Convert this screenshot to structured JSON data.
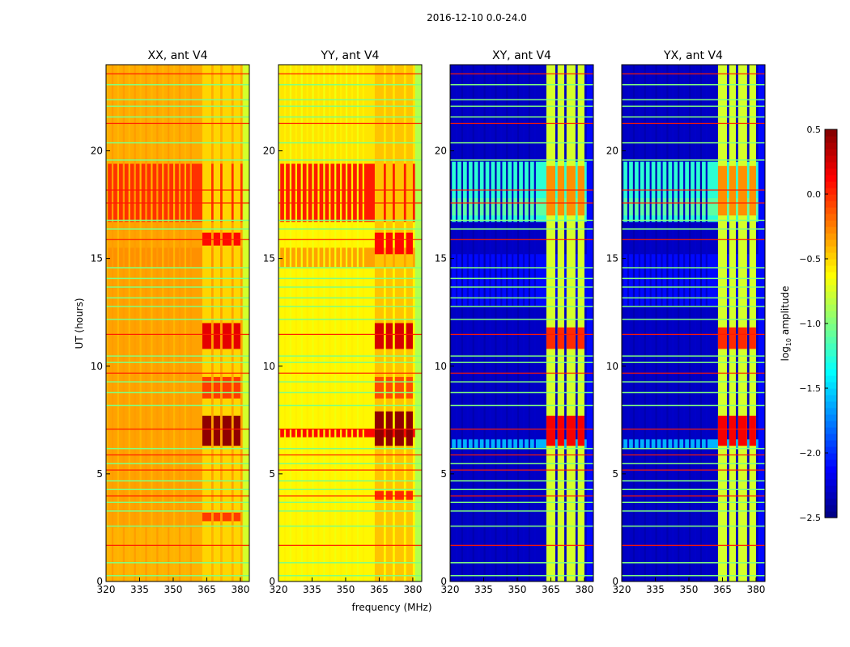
{
  "chart_data": {
    "type": "heatmap",
    "title": "2016-12-10 0.0-24.0",
    "xlabel": "frequency (MHz)",
    "ylabel": "UT (hours)",
    "xlim": [
      320,
      384
    ],
    "ylim": [
      0,
      24
    ],
    "xticks": [
      320,
      335,
      350,
      365,
      380
    ],
    "yticks": [
      0,
      5,
      10,
      15,
      20
    ],
    "colorbar": {
      "label": "log10 amplitude",
      "label_main": "log",
      "label_sub": "10",
      "label_rest": " amplitude",
      "colormap": "jet",
      "vmin": -2.5,
      "vmax": 0.5,
      "ticks": [
        "0.5",
        "0.0",
        "−0.5",
        "−1.0",
        "−1.5",
        "−2.0",
        "−2.5"
      ],
      "tick_values": [
        0.5,
        0.0,
        -0.5,
        -1.0,
        -1.5,
        -2.0,
        -2.5
      ]
    },
    "line_rows_green": [
      0.3,
      0.9,
      2.6,
      3.3,
      3.7,
      4.3,
      4.7,
      5.5,
      6.2,
      8.2,
      8.8,
      9.3,
      10.2,
      10.5,
      12.2,
      12.8,
      13.2,
      13.7,
      14.1,
      14.6,
      16.4,
      16.8,
      19.6,
      20.4,
      21.6,
      22.1,
      22.4,
      23.1
    ],
    "line_rows_red": [
      1.7,
      4.0,
      5.2,
      5.9,
      7.1,
      9.7,
      11.5,
      15.9,
      17.6,
      18.2,
      21.3,
      23.6
    ],
    "panels": [
      {
        "title": "XX, ant V4",
        "base": -0.35,
        "edge_level": -0.75,
        "bands": [
          [
            16.7,
            19.4,
            -0.02
          ],
          [
            19.4,
            24,
            -0.38
          ],
          [
            14.6,
            15.5,
            -0.3
          ],
          [
            0,
            2.5,
            -0.4
          ]
        ],
        "channels": [
          [
            363,
            367
          ],
          [
            368,
            371
          ],
          [
            372,
            376
          ],
          [
            377,
            380
          ]
        ],
        "channel_base": -0.5,
        "channel_bursts": [
          [
            6.3,
            7.7,
            0.45
          ],
          [
            10.8,
            12.0,
            0.2
          ],
          [
            15.6,
            16.2,
            0.1
          ],
          [
            8.5,
            9.5,
            -0.05
          ],
          [
            2.8,
            3.2,
            -0.05
          ]
        ]
      },
      {
        "title": "YY, ant V4",
        "base": -0.6,
        "edge_level": -0.85,
        "bands": [
          [
            16.7,
            19.4,
            0.05
          ],
          [
            6.7,
            7.1,
            0.1
          ],
          [
            14.6,
            15.5,
            -0.35
          ],
          [
            19.4,
            24,
            -0.55
          ]
        ],
        "channels": [
          [
            363,
            367
          ],
          [
            368,
            371
          ],
          [
            372,
            376
          ],
          [
            377,
            380
          ]
        ],
        "channel_base": -0.45,
        "channel_bursts": [
          [
            6.3,
            7.9,
            0.45
          ],
          [
            10.8,
            12.0,
            0.25
          ],
          [
            15.2,
            16.2,
            0.1
          ],
          [
            8.5,
            9.5,
            -0.1
          ],
          [
            3.8,
            4.2,
            0.0
          ]
        ]
      },
      {
        "title": "XY, ant V4",
        "base": -2.3,
        "edge_level": -2.1,
        "bands": [
          [
            16.7,
            19.5,
            -1.25
          ],
          [
            17.0,
            17.8,
            -1.1
          ],
          [
            12.8,
            15.2,
            -2.1
          ],
          [
            6.2,
            6.6,
            -1.6
          ]
        ],
        "channels": [
          [
            363,
            367
          ],
          [
            368,
            371
          ],
          [
            372,
            376
          ],
          [
            377,
            380
          ]
        ],
        "channel_base": -0.75,
        "channel_bursts": [
          [
            6.3,
            7.7,
            0.15
          ],
          [
            10.8,
            11.8,
            0.0
          ],
          [
            17.0,
            19.3,
            -0.3
          ]
        ]
      },
      {
        "title": "YX, ant V4",
        "base": -2.3,
        "edge_level": -2.1,
        "bands": [
          [
            16.7,
            19.5,
            -1.25
          ],
          [
            17.0,
            17.8,
            -1.1
          ],
          [
            12.8,
            15.2,
            -2.1
          ],
          [
            6.2,
            6.6,
            -1.6
          ]
        ],
        "channels": [
          [
            363,
            367
          ],
          [
            368,
            371
          ],
          [
            372,
            376
          ],
          [
            377,
            380
          ]
        ],
        "channel_base": -0.75,
        "channel_bursts": [
          [
            6.3,
            7.7,
            0.15
          ],
          [
            10.8,
            11.8,
            0.0
          ],
          [
            17.0,
            19.3,
            -0.3
          ]
        ]
      }
    ]
  }
}
